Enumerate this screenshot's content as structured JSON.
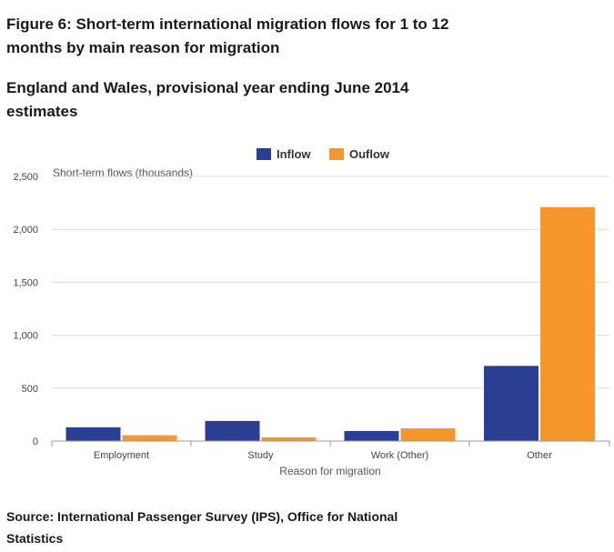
{
  "title": "Figure 6: Short-term international migration flows for 1 to 12 months by main reason for migration",
  "subtitle": "England and Wales, provisional year ending June 2014 estimates",
  "source": "Source: International Passenger Survey (IPS), Office for National Statistics",
  "colors": {
    "inflow": "#2a3f94",
    "outflow": "#f7962c",
    "grid": "#dcdcdc",
    "axis": "#999999"
  },
  "chart_data": {
    "type": "bar",
    "title": "",
    "xlabel": "Reason for migration",
    "ylabel": "Short-term flows (thousands)",
    "ylim": [
      0,
      2500
    ],
    "yticks": [
      0,
      500,
      1000,
      1500,
      2000,
      2500
    ],
    "ytick_labels": [
      "0",
      "500",
      "1,000",
      "1,500",
      "2,000",
      "2,500"
    ],
    "categories": [
      "Employment",
      "Study",
      "Work (Other)",
      "Other"
    ],
    "series": [
      {
        "name": "Inflow",
        "values": [
          130,
          190,
          95,
          710
        ]
      },
      {
        "name": "Ouflow",
        "values": [
          55,
          35,
          120,
          2210
        ]
      }
    ],
    "legend_position": "top-center"
  }
}
